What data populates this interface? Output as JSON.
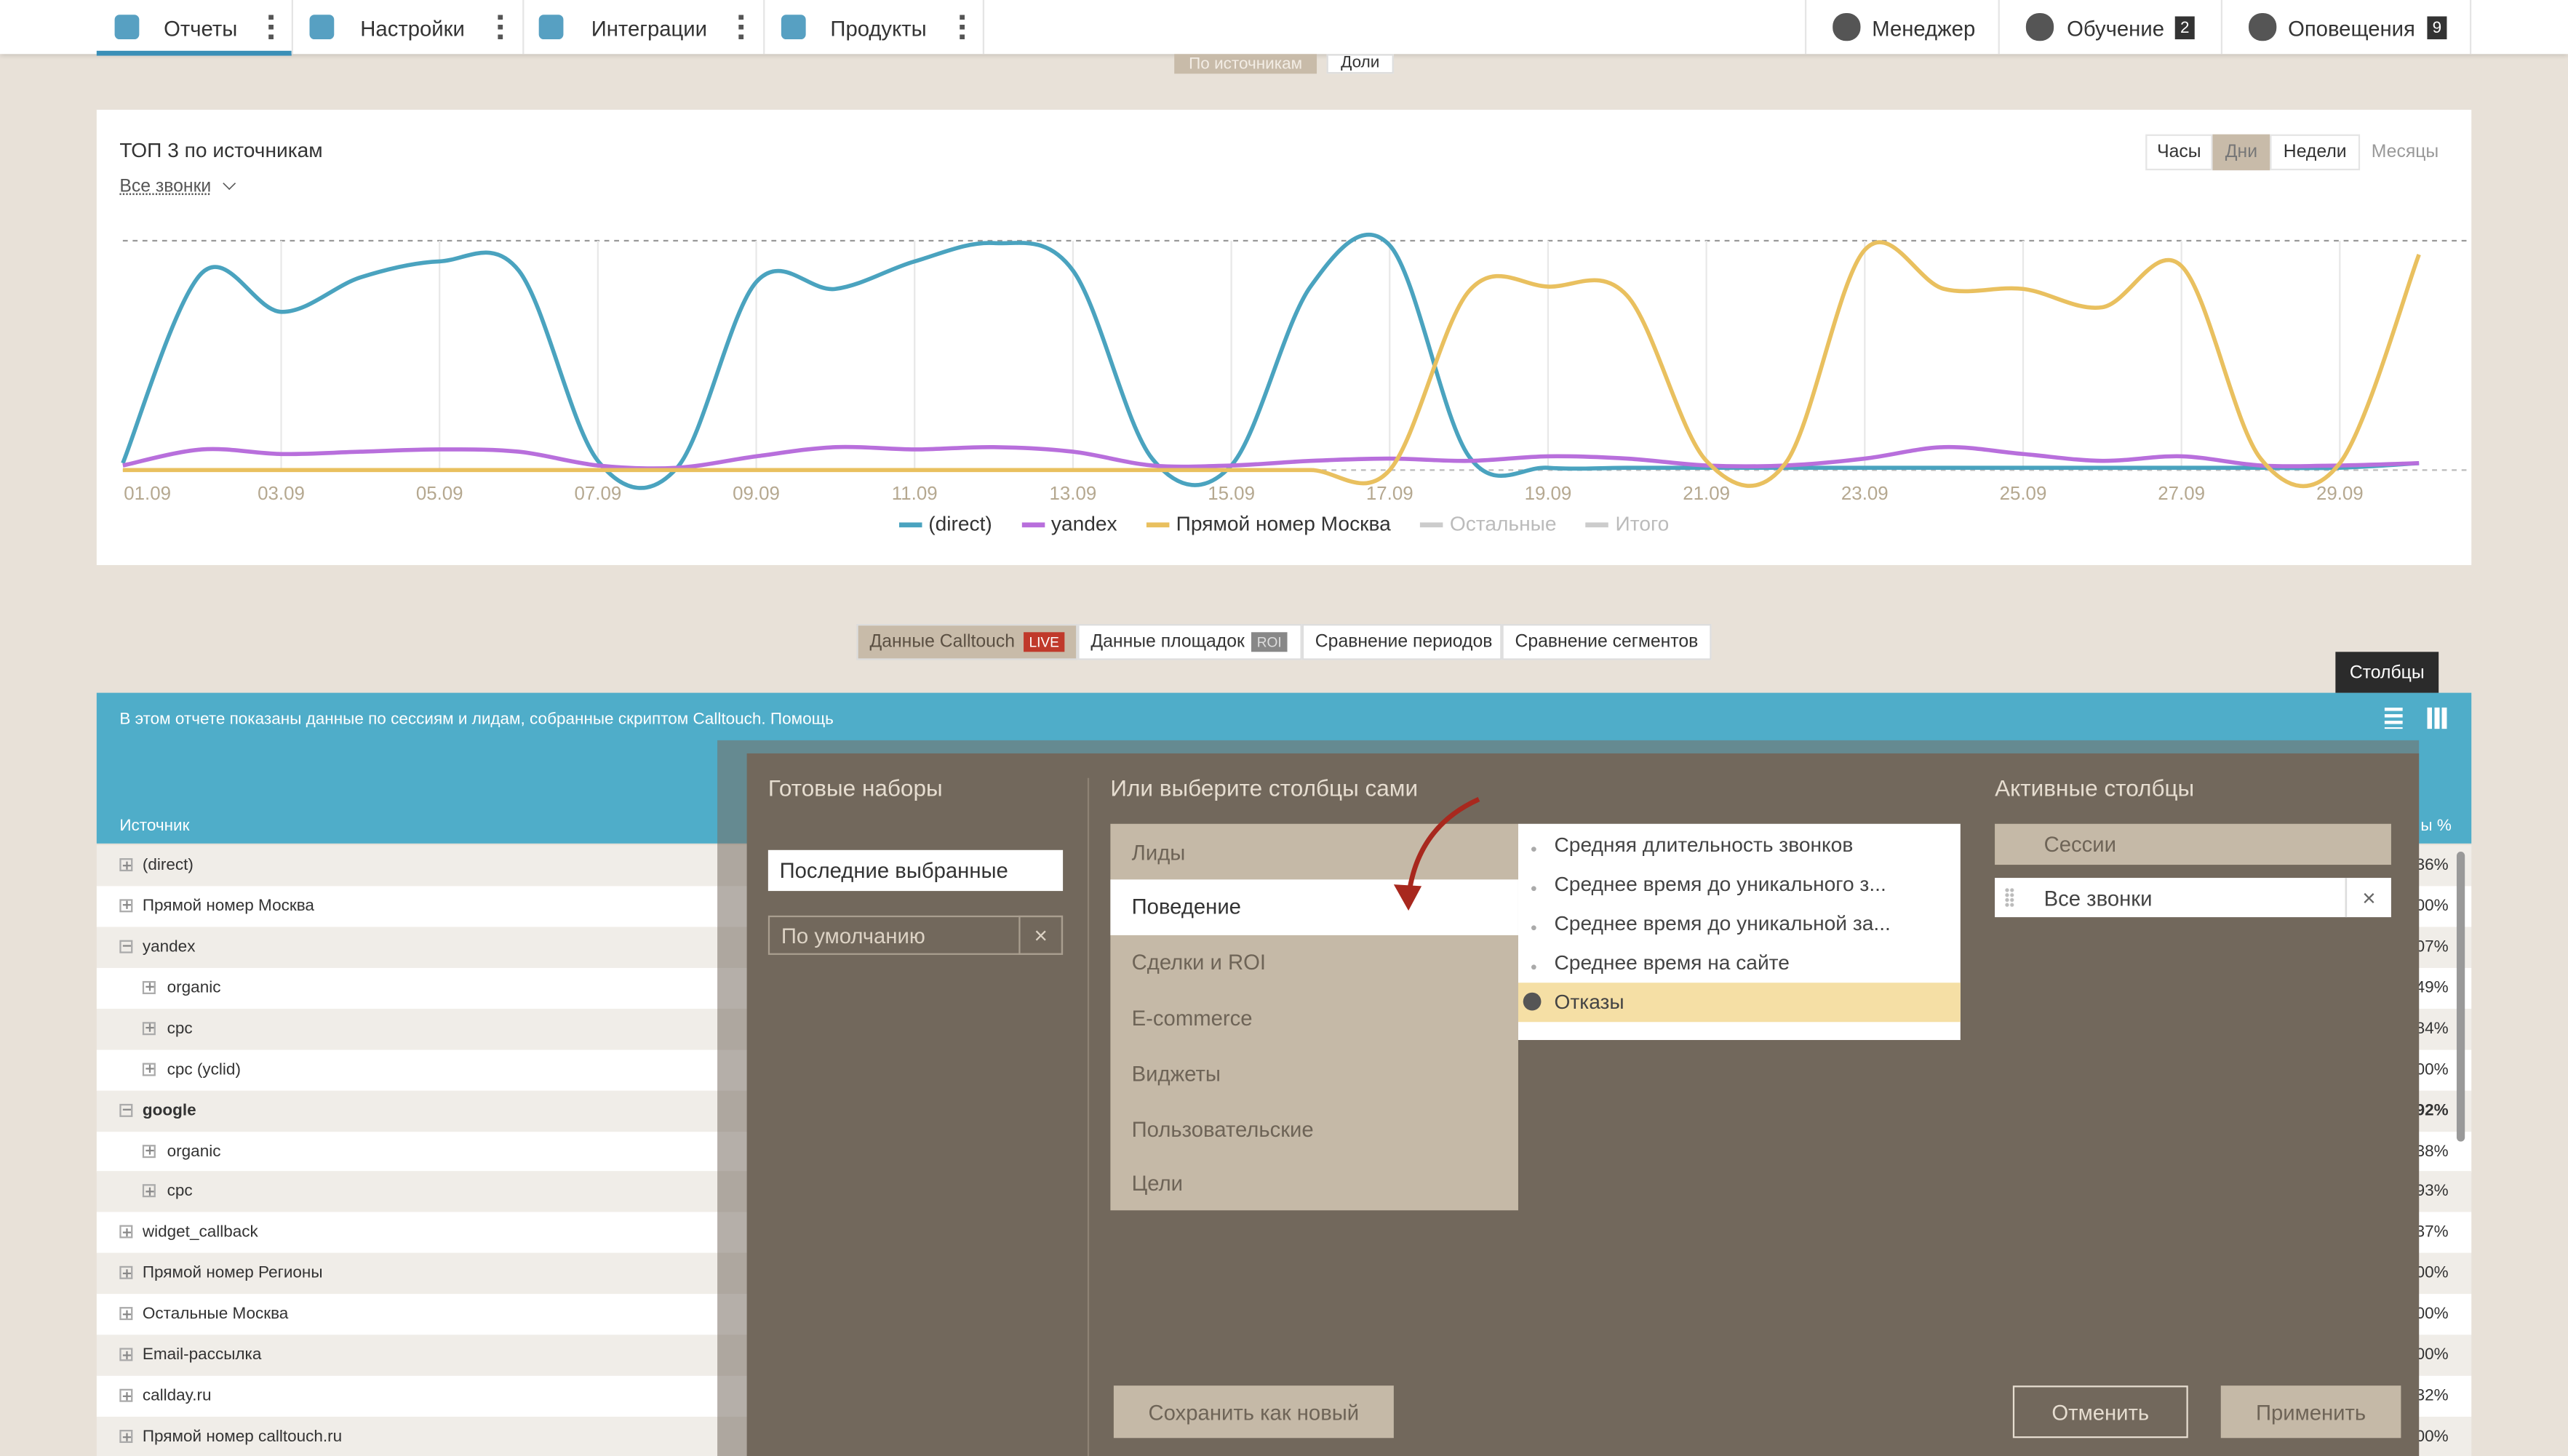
{
  "nav": {
    "left": [
      "Отчеты",
      "Настройки",
      "Интеграции",
      "Продукты"
    ],
    "right": [
      "Менеджер",
      "Обучение",
      "Оповещения"
    ],
    "badges": [
      "2",
      "9"
    ]
  },
  "view_toggle": [
    "По источникам",
    "Доли"
  ],
  "chart_data": {
    "type": "line",
    "title": "ТОП 3 по источникам",
    "filter": "Все звонки",
    "periods": [
      "Часы",
      "Дни",
      "Недели",
      "Месяцы"
    ],
    "categories": [
      "01.09",
      null,
      "03.09",
      null,
      "05.09",
      null,
      "07.09",
      null,
      "09.09",
      null,
      "11.09",
      null,
      "13.09",
      null,
      "15.09",
      null,
      "17.09",
      null,
      "19.09",
      null,
      "21.09",
      null,
      "23.09",
      null,
      "25.09",
      null,
      "27.09",
      null,
      "29.09",
      null
    ],
    "series": [
      {
        "name": "(direct)",
        "color": "#4aa3bf",
        "values": [
          3,
          86,
          69,
          84,
          91,
          87,
          4,
          1,
          82,
          79,
          91,
          99,
          87,
          5,
          2,
          80,
          98,
          6,
          1,
          1,
          1,
          1,
          1,
          1,
          1,
          1,
          1,
          1,
          1,
          3
        ]
      },
      {
        "name": "yandex",
        "color": "#b86fdc",
        "values": [
          2,
          9,
          7,
          8,
          9,
          8,
          2,
          1,
          6,
          10,
          9,
          10,
          8,
          2,
          2,
          4,
          5,
          4,
          6,
          5,
          2,
          2,
          5,
          10,
          7,
          4,
          6,
          2,
          2,
          3
        ]
      },
      {
        "name": "Прямой номер Москва",
        "color": "#e9c05f",
        "values": [
          0,
          0,
          0,
          0,
          0,
          0,
          0,
          0,
          0,
          0,
          0,
          0,
          0,
          0,
          0,
          0,
          0,
          78,
          80,
          76,
          4,
          3,
          96,
          79,
          79,
          71,
          89,
          5,
          3,
          94
        ]
      }
    ],
    "legend_disabled": [
      "Остальные",
      "Итого"
    ],
    "ylim": [
      0,
      100
    ],
    "grid": true
  },
  "tabs": [
    "Данные Calltouch",
    "Данные площадок",
    "Сравнение периодов",
    "Сравнение сегментов"
  ],
  "tab_badges": [
    "LIVE",
    "ROI"
  ],
  "tooltip": "Столбцы",
  "info": "В этом отчете показаны данные по сессиям и лидам, собранные скриптом Calltouch. Помощь",
  "table": {
    "header": "Источник",
    "header_right": "ы %",
    "rows": [
      [
        "(direct)",
        "36%"
      ],
      [
        "Прямой номер Москва",
        "00%"
      ],
      [
        "yandex",
        "07%"
      ],
      [
        "organic",
        "49%"
      ],
      [
        "cpc",
        "84%"
      ],
      [
        "cpc (yclid)",
        "00%"
      ],
      [
        "google",
        "92%"
      ],
      [
        "organic",
        "38%"
      ],
      [
        "cpc",
        "93%"
      ],
      [
        "widget_callback",
        "37%"
      ],
      [
        "Прямой номер Регионы",
        "00%"
      ],
      [
        "Остальные Москва",
        "00%"
      ],
      [
        "Email-рассылка",
        "00%"
      ],
      [
        "callday.ru",
        "32%"
      ],
      [
        "Прямой номер calltouch.ru",
        "00%"
      ]
    ]
  },
  "modal": {
    "presets_title": "Готовые наборы",
    "presets": [
      "Последние выбранные",
      "По умолчанию"
    ],
    "choose_title": "Или выберите столбцы сами",
    "groups": [
      "Лиды",
      "Поведение",
      "Сделки и ROI",
      "E-commerce",
      "Виджеты",
      "Пользовательские",
      "Цели"
    ],
    "fields": [
      "Средняя длительность звонков",
      "Среднее время до уникального з...",
      "Среднее время до уникальной за...",
      "Среднее время на сайте",
      "Отказы"
    ],
    "active_title": "Активные столбцы",
    "active": [
      "Сессии",
      "Все звонки"
    ],
    "buttons": [
      "Сохранить как новый",
      "Отменить",
      "Применить"
    ]
  }
}
